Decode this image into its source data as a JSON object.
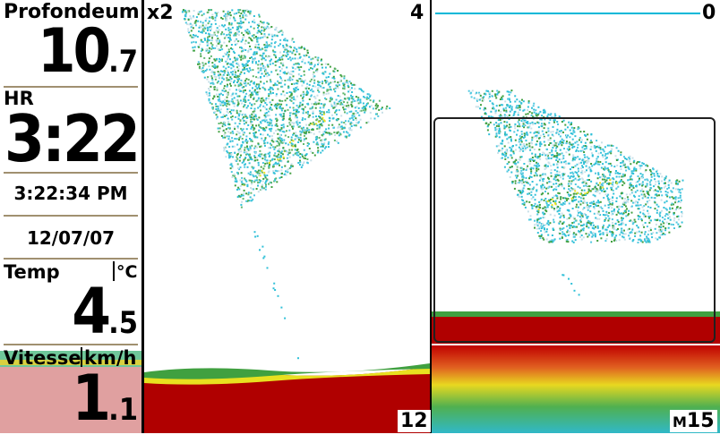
{
  "info": {
    "depth_label": "Profondeum",
    "depth_whole": "10",
    "depth_decimal": ".7",
    "hr_label": "HR",
    "hr_value": "3:22",
    "clock": "3:22:34 PM",
    "date": "12/07/07",
    "temp_label": "Temp",
    "temp_unit": "°C",
    "temp_whole": "4",
    "temp_decimal": ".5",
    "speed_label": "Vitesse",
    "speed_unit": "km/h",
    "speed_whole": "1",
    "speed_decimal": ".1"
  },
  "sonar": {
    "zoom_label": "x2",
    "left_depth_top": "4",
    "right_depth_top": "0",
    "left_depth_bottom": "12",
    "right_depth_bottom_unit": "M",
    "right_depth_bottom": "15"
  },
  "colors": {
    "bottom_red": "#b00000",
    "echo_cyan": "#30c0d8",
    "echo_green": "#40a040",
    "echo_yellow": "#e8e020",
    "flasher_cyan": "#00b8d8",
    "speed_field": "#e0a0a0"
  }
}
